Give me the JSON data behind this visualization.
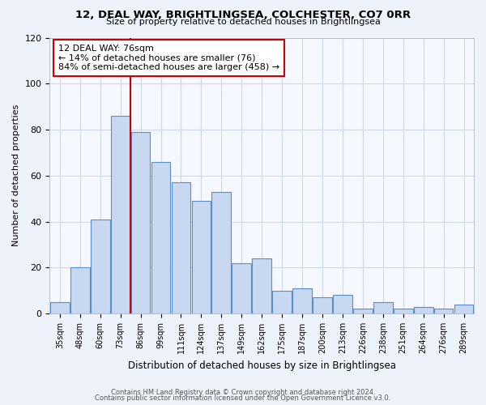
{
  "title1": "12, DEAL WAY, BRIGHTLINGSEA, COLCHESTER, CO7 0RR",
  "title2": "Size of property relative to detached houses in Brightlingsea",
  "xlabel": "Distribution of detached houses by size in Brightlingsea",
  "ylabel": "Number of detached properties",
  "bar_labels": [
    "35sqm",
    "48sqm",
    "60sqm",
    "73sqm",
    "86sqm",
    "99sqm",
    "111sqm",
    "124sqm",
    "137sqm",
    "149sqm",
    "162sqm",
    "175sqm",
    "187sqm",
    "200sqm",
    "213sqm",
    "226sqm",
    "238sqm",
    "251sqm",
    "264sqm",
    "276sqm",
    "289sqm"
  ],
  "bar_values": [
    5,
    20,
    41,
    86,
    79,
    66,
    57,
    49,
    53,
    22,
    24,
    10,
    11,
    7,
    8,
    2,
    5,
    2,
    3,
    2,
    4
  ],
  "bar_color": "#c8d8f0",
  "bar_edge_color": "#5b8ec8",
  "red_line_index": 3.5,
  "annotation_title": "12 DEAL WAY: 76sqm",
  "annotation_line1": "← 14% of detached houses are smaller (76)",
  "annotation_line2": "84% of semi-detached houses are larger (458) →",
  "ylim": [
    0,
    120
  ],
  "yticks": [
    0,
    20,
    40,
    60,
    80,
    100,
    120
  ],
  "footer1": "Contains HM Land Registry data © Crown copyright and database right 2024.",
  "footer2": "Contains public sector information licensed under the Open Government Licence v3.0.",
  "bg_color": "#eef2fa",
  "plot_bg_color": "#f5f8ff",
  "grid_color": "#d0d8e8"
}
